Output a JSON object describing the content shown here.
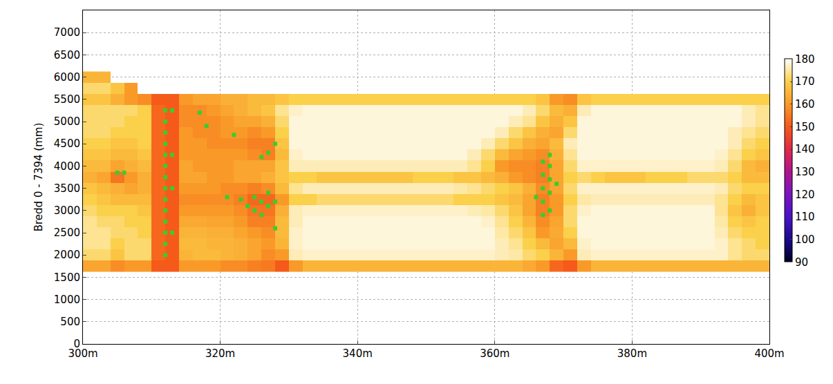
{
  "chart_data": {
    "type": "heatmap",
    "y_label": "Bredd 0 - 7394 (mm)",
    "xlim": [
      300,
      400
    ],
    "xticks": [
      {
        "value": 300,
        "label": "300m"
      },
      {
        "value": 320,
        "label": "320m"
      },
      {
        "value": 340,
        "label": "340m"
      },
      {
        "value": 360,
        "label": "360m"
      },
      {
        "value": 380,
        "label": "380m"
      },
      {
        "value": 400,
        "label": "400m"
      }
    ],
    "ylim": [
      0,
      7500
    ],
    "yticks": [
      0,
      500,
      1000,
      1500,
      2000,
      2500,
      3000,
      3500,
      4000,
      4500,
      5000,
      5500,
      6000,
      6500,
      7000
    ],
    "grid": true,
    "x": [
      301,
      303,
      305,
      307,
      309,
      311,
      313,
      315,
      317,
      319,
      321,
      323,
      325,
      327,
      329,
      331,
      333,
      335,
      337,
      339,
      341,
      343,
      345,
      347,
      349,
      351,
      353,
      355,
      357,
      359,
      361,
      363,
      365,
      367,
      369,
      371,
      373,
      375,
      377,
      379,
      381,
      383,
      385,
      387,
      389,
      391,
      393,
      395,
      397,
      399
    ],
    "y": [
      1750,
      2000,
      2250,
      2500,
      2750,
      3000,
      3250,
      3500,
      3750,
      4000,
      4250,
      4500,
      4750,
      5000,
      5250,
      5500,
      5750,
      6000
    ],
    "z": [
      [
        162,
        162,
        158,
        160,
        160,
        150,
        150,
        160,
        160,
        160,
        158,
        158,
        156,
        155,
        150,
        160,
        165,
        165,
        165,
        165,
        165,
        165,
        165,
        165,
        165,
        165,
        165,
        165,
        165,
        165,
        165,
        165,
        163,
        160,
        152,
        150,
        160,
        165,
        165,
        165,
        165,
        165,
        165,
        165,
        165,
        165,
        165,
        165,
        165,
        165
      ],
      [
        172,
        172,
        168,
        172,
        172,
        152,
        150,
        165,
        166,
        166,
        165,
        164,
        162,
        158,
        160,
        176,
        177,
        177,
        177,
        177,
        177,
        177,
        177,
        177,
        177,
        177,
        177,
        177,
        177,
        177,
        176,
        175,
        172,
        170,
        165,
        160,
        176,
        177,
        177,
        177,
        177,
        177,
        177,
        177,
        177,
        177,
        177,
        174,
        172,
        172
      ],
      [
        174,
        174,
        170,
        172,
        172,
        152,
        150,
        166,
        166,
        165,
        165,
        164,
        162,
        160,
        165,
        177,
        178,
        178,
        178,
        178,
        178,
        178,
        178,
        178,
        178,
        178,
        178,
        178,
        178,
        178,
        176,
        174,
        170,
        166,
        162,
        166,
        177,
        178,
        178,
        178,
        178,
        178,
        178,
        178,
        178,
        178,
        177,
        174,
        172,
        170
      ],
      [
        174,
        174,
        172,
        172,
        170,
        152,
        150,
        165,
        165,
        164,
        164,
        162,
        160,
        158,
        166,
        177,
        178,
        178,
        178,
        178,
        178,
        178,
        178,
        178,
        178,
        178,
        178,
        178,
        178,
        178,
        175,
        172,
        168,
        160,
        163,
        170,
        178,
        178,
        178,
        178,
        178,
        178,
        178,
        178,
        178,
        178,
        176,
        172,
        170,
        170
      ],
      [
        174,
        172,
        172,
        170,
        170,
        152,
        150,
        163,
        163,
        162,
        162,
        160,
        156,
        156,
        166,
        176,
        178,
        178,
        178,
        178,
        178,
        178,
        178,
        178,
        178,
        178,
        178,
        178,
        178,
        177,
        174,
        170,
        165,
        158,
        162,
        172,
        178,
        178,
        178,
        178,
        178,
        178,
        178,
        178,
        178,
        178,
        175,
        170,
        168,
        170
      ],
      [
        172,
        170,
        170,
        170,
        168,
        152,
        150,
        160,
        160,
        160,
        160,
        158,
        154,
        154,
        164,
        176,
        177,
        177,
        177,
        177,
        177,
        177,
        177,
        177,
        177,
        177,
        177,
        177,
        176,
        175,
        172,
        168,
        162,
        156,
        160,
        172,
        177,
        178,
        178,
        178,
        178,
        178,
        178,
        178,
        178,
        178,
        174,
        168,
        164,
        168
      ],
      [
        170,
        168,
        166,
        166,
        166,
        152,
        150,
        158,
        158,
        158,
        158,
        156,
        152,
        152,
        160,
        170,
        170,
        172,
        172,
        172,
        172,
        172,
        172,
        172,
        172,
        172,
        172,
        170,
        170,
        170,
        168,
        166,
        162,
        156,
        160,
        170,
        175,
        176,
        176,
        176,
        176,
        176,
        176,
        176,
        176,
        176,
        174,
        170,
        166,
        168
      ],
      [
        168,
        166,
        164,
        162,
        164,
        152,
        150,
        160,
        160,
        160,
        158,
        158,
        156,
        158,
        166,
        174,
        176,
        176,
        176,
        176,
        176,
        176,
        176,
        176,
        176,
        176,
        176,
        175,
        174,
        172,
        170,
        168,
        164,
        158,
        162,
        172,
        177,
        177,
        177,
        177,
        177,
        177,
        177,
        177,
        177,
        177,
        176,
        172,
        170,
        170
      ],
      [
        164,
        162,
        154,
        160,
        164,
        152,
        150,
        162,
        162,
        160,
        160,
        162,
        162,
        164,
        168,
        170,
        170,
        168,
        168,
        168,
        168,
        168,
        168,
        168,
        170,
        170,
        170,
        168,
        168,
        166,
        164,
        160,
        158,
        156,
        162,
        170,
        172,
        170,
        168,
        168,
        168,
        170,
        170,
        170,
        172,
        172,
        172,
        170,
        166,
        166
      ],
      [
        166,
        166,
        162,
        164,
        166,
        152,
        150,
        162,
        160,
        160,
        160,
        162,
        162,
        162,
        168,
        176,
        176,
        176,
        176,
        176,
        176,
        176,
        176,
        176,
        176,
        176,
        176,
        176,
        174,
        170,
        160,
        158,
        158,
        156,
        162,
        172,
        177,
        177,
        177,
        177,
        177,
        177,
        177,
        177,
        177,
        177,
        176,
        172,
        166,
        164
      ],
      [
        168,
        168,
        166,
        166,
        168,
        152,
        150,
        160,
        160,
        160,
        160,
        160,
        158,
        156,
        166,
        177,
        178,
        178,
        178,
        178,
        178,
        178,
        178,
        178,
        178,
        178,
        178,
        178,
        176,
        172,
        166,
        162,
        160,
        158,
        164,
        174,
        178,
        178,
        178,
        178,
        178,
        178,
        178,
        178,
        178,
        178,
        177,
        174,
        170,
        168
      ],
      [
        170,
        170,
        168,
        168,
        170,
        152,
        150,
        160,
        160,
        158,
        158,
        158,
        156,
        156,
        168,
        178,
        178,
        178,
        178,
        178,
        178,
        178,
        178,
        178,
        178,
        178,
        178,
        178,
        178,
        176,
        172,
        168,
        164,
        162,
        166,
        176,
        178,
        178,
        178,
        178,
        178,
        178,
        178,
        178,
        178,
        178,
        178,
        176,
        172,
        170
      ],
      [
        172,
        172,
        170,
        170,
        170,
        152,
        150,
        160,
        158,
        158,
        160,
        160,
        158,
        160,
        170,
        178,
        178,
        178,
        178,
        178,
        178,
        178,
        178,
        178,
        178,
        178,
        178,
        178,
        178,
        178,
        176,
        172,
        168,
        164,
        162,
        172,
        178,
        178,
        178,
        178,
        178,
        178,
        178,
        178,
        178,
        178,
        178,
        176,
        174,
        172
      ],
      [
        172,
        172,
        172,
        170,
        170,
        152,
        150,
        158,
        158,
        158,
        160,
        162,
        162,
        164,
        172,
        178,
        178,
        178,
        178,
        178,
        178,
        178,
        178,
        178,
        178,
        178,
        178,
        178,
        178,
        178,
        178,
        176,
        174,
        168,
        164,
        168,
        178,
        178,
        178,
        178,
        178,
        178,
        178,
        178,
        178,
        178,
        178,
        178,
        176,
        174
      ],
      [
        172,
        172,
        172,
        172,
        170,
        152,
        150,
        158,
        158,
        160,
        162,
        164,
        166,
        168,
        174,
        177,
        178,
        178,
        178,
        178,
        178,
        178,
        178,
        178,
        178,
        178,
        178,
        178,
        178,
        178,
        178,
        178,
        176,
        172,
        166,
        164,
        176,
        178,
        178,
        178,
        178,
        178,
        178,
        178,
        178,
        178,
        178,
        178,
        176,
        174
      ],
      [
        168,
        168,
        164,
        160,
        158,
        150,
        150,
        160,
        162,
        162,
        164,
        164,
        166,
        166,
        168,
        170,
        170,
        170,
        170,
        170,
        170,
        170,
        170,
        170,
        170,
        170,
        170,
        170,
        170,
        170,
        170,
        170,
        170,
        168,
        160,
        158,
        168,
        170,
        170,
        170,
        170,
        170,
        170,
        170,
        170,
        170,
        170,
        170,
        170,
        170
      ],
      [
        172,
        172,
        168,
        160,
        null,
        null,
        null,
        null,
        null,
        null,
        null,
        null,
        null,
        null,
        null,
        null,
        null,
        null,
        null,
        null,
        null,
        null,
        null,
        null,
        null,
        null,
        null,
        null,
        null,
        null,
        null,
        null,
        null,
        null,
        null,
        null,
        null,
        null,
        null,
        null,
        null,
        null,
        null,
        null,
        null,
        null,
        null,
        null,
        null,
        null
      ],
      [
        165,
        165,
        null,
        null,
        null,
        null,
        null,
        null,
        null,
        null,
        null,
        null,
        null,
        null,
        null,
        null,
        null,
        null,
        null,
        null,
        null,
        null,
        null,
        null,
        null,
        null,
        null,
        null,
        null,
        null,
        null,
        null,
        null,
        null,
        null,
        null,
        null,
        null,
        null,
        null,
        null,
        null,
        null,
        null,
        null,
        null,
        null,
        null,
        null,
        null
      ]
    ],
    "colorbar": {
      "range": [
        90,
        180
      ],
      "ticks": [
        90,
        100,
        110,
        120,
        130,
        140,
        150,
        160,
        170,
        180
      ],
      "colors": [
        "#000022",
        "#1a0a8c",
        "#4a12c8",
        "#7a14c0",
        "#b0148c",
        "#e02a48",
        "#f55a1a",
        "#f99a28",
        "#fbd04a",
        "#ffffff"
      ]
    },
    "series": [
      {
        "type": "scatter",
        "marker": "square",
        "color": "#3ccc2c",
        "x": [
          305,
          306,
          312,
          312,
          312,
          312,
          312,
          312,
          312,
          312,
          312,
          312,
          312,
          312,
          312,
          312,
          313,
          313,
          313,
          313,
          317,
          318,
          321,
          322,
          323,
          324,
          325,
          325,
          326,
          326,
          326,
          327,
          327,
          327,
          328,
          328,
          328,
          366,
          367,
          367,
          367,
          367,
          367,
          368,
          368,
          368,
          368,
          368,
          369
        ],
        "y": [
          3850,
          3850,
          2000,
          2250,
          2500,
          2750,
          3000,
          3250,
          3500,
          3750,
          4000,
          4250,
          4500,
          4750,
          5000,
          5250,
          2500,
          3500,
          4250,
          5250,
          5200,
          4900,
          3300,
          4700,
          3250,
          3100,
          3000,
          3300,
          2900,
          3200,
          4200,
          3100,
          3400,
          4300,
          2600,
          3200,
          4500,
          3300,
          2900,
          3200,
          3500,
          3800,
          4100,
          3000,
          3400,
          3700,
          4000,
          4250,
          3600
        ]
      }
    ]
  }
}
